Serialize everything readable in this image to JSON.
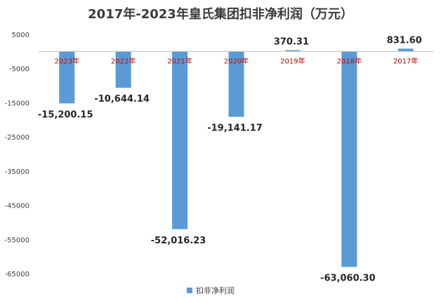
{
  "chart_data": {
    "type": "bar",
    "title": "2017年-2023年皇氏集团扣非净利润（万元）",
    "categories": [
      "2023年",
      "2022年",
      "2021年",
      "2020年",
      "2019年",
      "2018年",
      "2017年"
    ],
    "series": [
      {
        "name": "扣非净利润",
        "values": [
          -15200.15,
          -10644.14,
          -52016.23,
          -19141.17,
          370.31,
          -63060.3,
          831.6
        ],
        "labels": [
          "-15,200.15",
          "-10,644.14",
          "-52,016.23",
          "-19,141.17",
          "370.31",
          "-63,060.30",
          "831.60"
        ],
        "color": "#5b9bd5"
      }
    ],
    "yticks": [
      5000,
      -5000,
      -15000,
      -25000,
      -35000,
      -45000,
      -55000,
      -65000
    ],
    "ylim": [
      -65000,
      5000
    ],
    "grid": false,
    "legend": "bottom"
  }
}
